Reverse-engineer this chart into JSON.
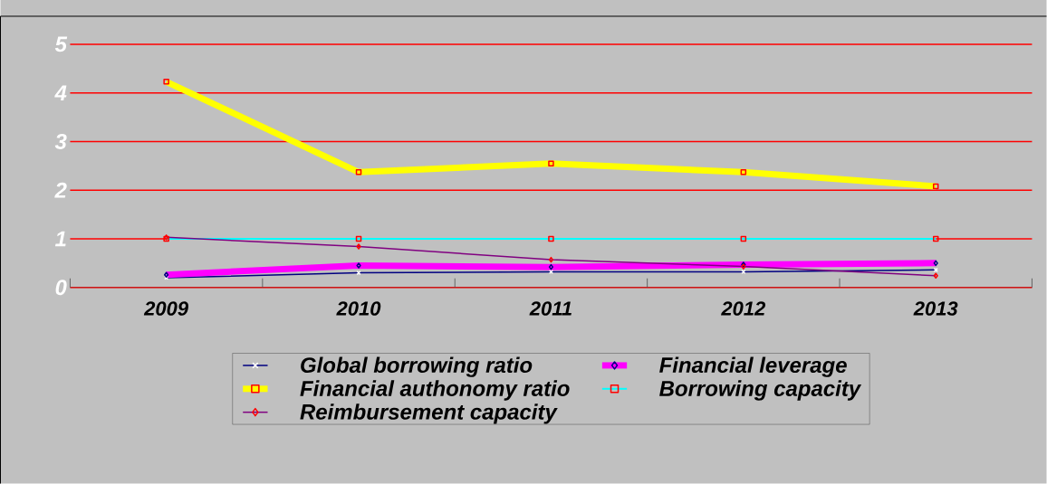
{
  "chart_data": {
    "type": "line",
    "categories": [
      "2009",
      "2010",
      "2011",
      "2012",
      "2013"
    ],
    "ylim": [
      0,
      5
    ],
    "yticks": [
      0,
      1,
      2,
      3,
      4,
      5
    ],
    "grid": "y",
    "legend": "bottom",
    "series": [
      {
        "name": "Global borrowing ratio",
        "color": "#000080",
        "marker": "cross",
        "values": [
          0.2,
          0.3,
          0.32,
          0.32,
          0.36
        ]
      },
      {
        "name": "Financial leverage",
        "color": "#ff00ff",
        "marker": "diamond",
        "values": [
          0.26,
          0.45,
          0.42,
          0.47,
          0.5
        ]
      },
      {
        "name": "Financial authonomy ratio",
        "color": "#ffff00",
        "marker": "square",
        "values": [
          4.23,
          2.37,
          2.55,
          2.37,
          2.08
        ]
      },
      {
        "name": "Borrowing capacity",
        "color": "#00ffff",
        "marker": "square",
        "values": [
          1,
          1,
          1,
          1,
          1
        ]
      },
      {
        "name": "Reimbursement capacity",
        "color": "#800080",
        "marker": "diamond",
        "values": [
          1.03,
          0.84,
          0.57,
          0.43,
          0.24
        ]
      }
    ]
  }
}
